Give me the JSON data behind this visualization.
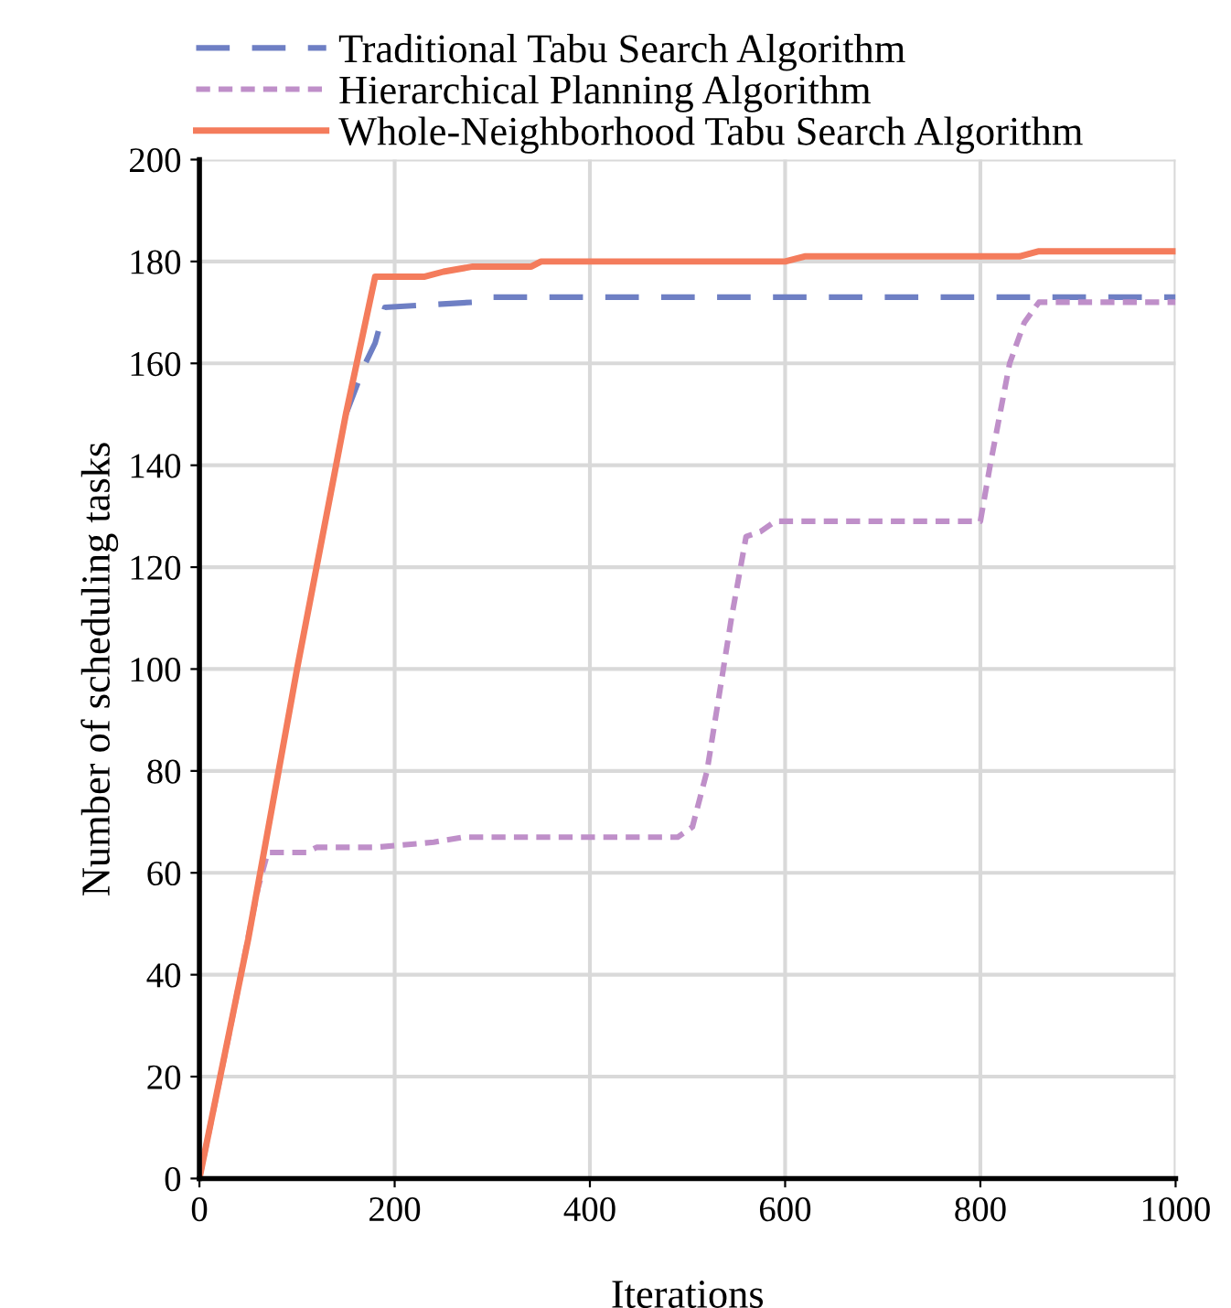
{
  "chart_data": {
    "type": "line",
    "xlabel": "Iterations",
    "ylabel": "Number of scheduling tasks",
    "xlim": [
      0,
      1000
    ],
    "ylim": [
      0,
      200
    ],
    "xticks": [
      0,
      200,
      400,
      600,
      800,
      1000
    ],
    "yticks": [
      0,
      20,
      40,
      60,
      80,
      100,
      120,
      140,
      160,
      180,
      200
    ],
    "grid": true,
    "legend": "top left",
    "marker": "none",
    "series": [
      {
        "name": "Traditional Tabu Search Algorithm",
        "color": "#6e7fc4",
        "line_style": "dashed",
        "x": [
          150,
          170,
          180,
          190,
          280,
          300,
          1000
        ],
        "values": [
          150,
          160,
          164,
          171,
          172,
          173,
          173
        ]
      },
      {
        "name": "Hierarchical Planning Algorithm",
        "color": "#bf8fc9",
        "line_style": "dotted",
        "x": [
          0,
          30,
          60,
          70,
          110,
          120,
          180,
          240,
          270,
          490,
          505,
          520,
          545,
          560,
          575,
          590,
          800,
          810,
          830,
          845,
          860,
          1000
        ],
        "values": [
          0,
          28,
          57,
          64,
          64,
          65,
          65,
          66,
          67,
          67,
          69,
          80,
          110,
          126,
          127,
          129,
          129,
          140,
          160,
          168,
          172,
          172
        ]
      },
      {
        "name": "Whole-Neighborhood Tabu Search Algorithm",
        "color": "#f47c5c",
        "line_style": "solid",
        "x": [
          0,
          50,
          100,
          150,
          180,
          230,
          250,
          280,
          340,
          350,
          600,
          620,
          840,
          860,
          1000
        ],
        "values": [
          0,
          47,
          100,
          150,
          177,
          177,
          178,
          179,
          179,
          180,
          180,
          181,
          181,
          182,
          182
        ]
      }
    ]
  }
}
